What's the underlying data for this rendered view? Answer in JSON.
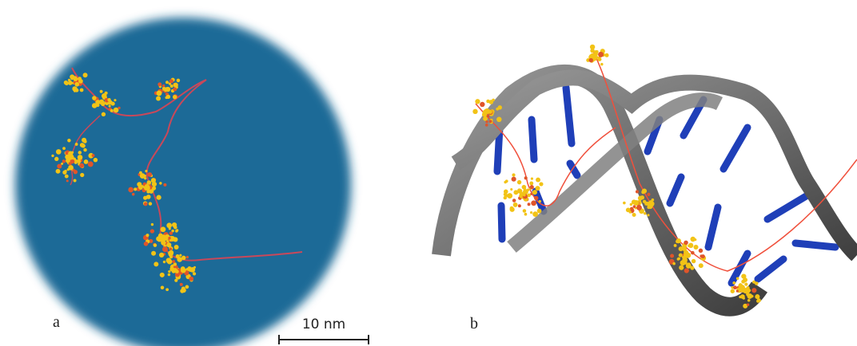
{
  "panels": [
    {
      "label": "a"
    },
    {
      "label": "b"
    }
  ],
  "scale_bar": {
    "label": "10 nm"
  }
}
